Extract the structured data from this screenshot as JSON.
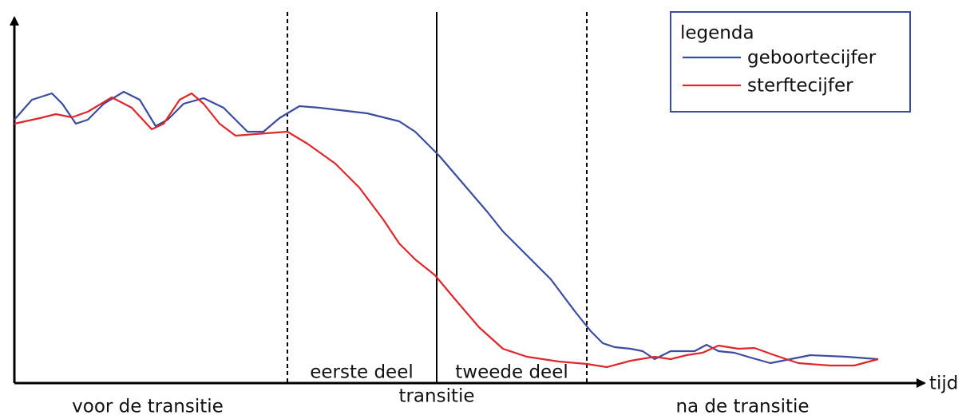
{
  "legend": {
    "title": "legenda",
    "items": [
      "geboortecijfer",
      "sterftecijfer"
    ]
  },
  "axis": {
    "x_label": "tijd"
  },
  "phases": [
    "voor de transitie",
    "eerste deel",
    "tweede deel",
    "transitie",
    "na de transitie"
  ]
}
